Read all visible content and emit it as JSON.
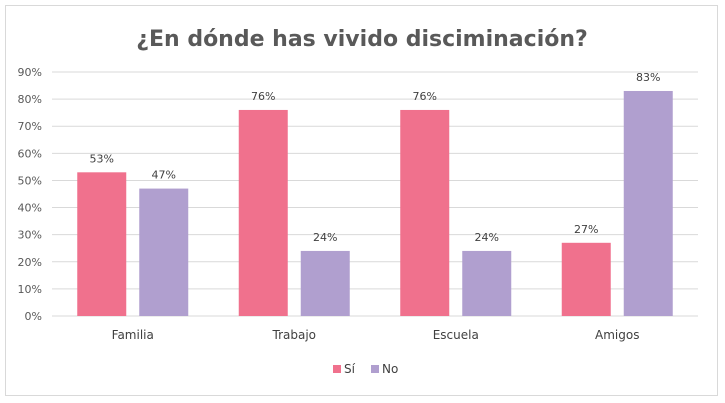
{
  "chart_data": {
    "type": "bar",
    "title": "¿En dónde has vivido disciminación?",
    "categories": [
      "Familia",
      "Trabajo",
      "Escuela",
      "Amigos"
    ],
    "series": [
      {
        "name": "Sí",
        "values": [
          53,
          76,
          76,
          27
        ],
        "labels": [
          "53%",
          "76%",
          "76%",
          "27%"
        ],
        "color": "#f0718d"
      },
      {
        "name": "No",
        "values": [
          47,
          24,
          24,
          83
        ],
        "labels": [
          "47%",
          "24%",
          "24%",
          "83%"
        ],
        "color": "#b09fcf"
      }
    ],
    "ylim": [
      0,
      90
    ],
    "yticks": [
      "0%",
      "10%",
      "20%",
      "30%",
      "40%",
      "50%",
      "60%",
      "70%",
      "80%",
      "90%"
    ],
    "grid": true,
    "legend_position": "bottom",
    "gridline_color": "#d9d9d9"
  }
}
